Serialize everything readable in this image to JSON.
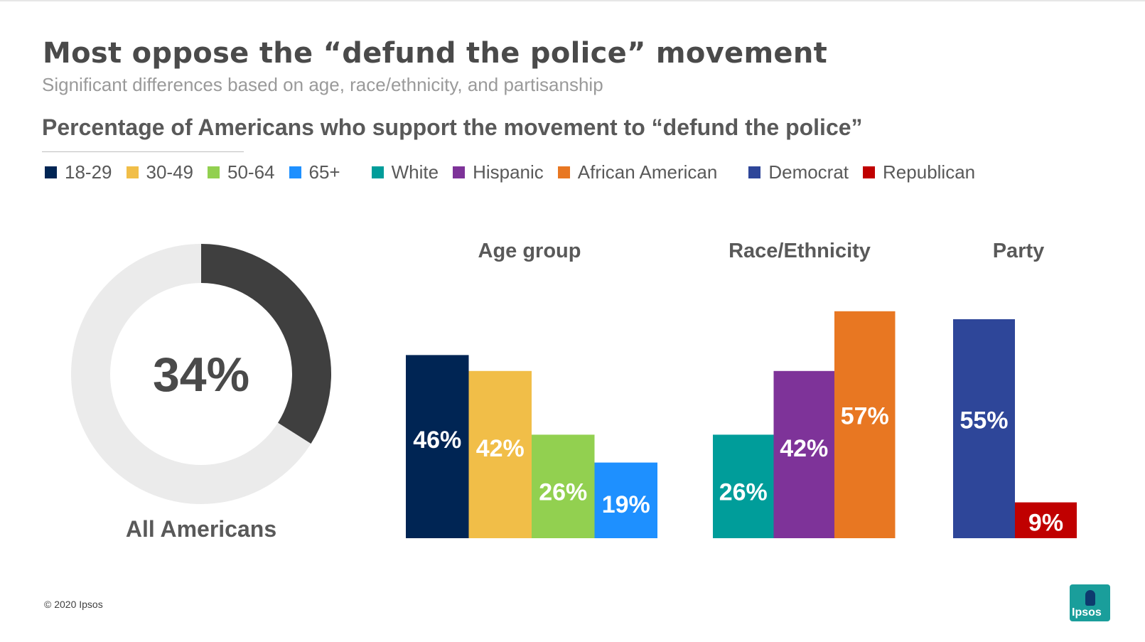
{
  "title": "Most oppose the “defund the police” movement",
  "subtitle": "Significant differences based on age, race/ethnicity, and partisanship",
  "chart_heading": "Percentage of Americans who support the movement to “defund the police”",
  "legend": [
    {
      "label": "18-29",
      "color": "#002554"
    },
    {
      "label": "30-49",
      "color": "#f1be48"
    },
    {
      "label": "50-64",
      "color": "#92d050"
    },
    {
      "label": "65+",
      "color": "#1e90ff"
    },
    {
      "label": "White",
      "color": "#009d9a"
    },
    {
      "label": "Hispanic",
      "color": "#7e3399"
    },
    {
      "label": "African American",
      "color": "#e87722"
    },
    {
      "label": "Democrat",
      "color": "#2e4699"
    },
    {
      "label": "Republican",
      "color": "#c00000"
    }
  ],
  "footer": "© 2020 Ipsos",
  "logo_text": "Ipsos",
  "chart_data": [
    {
      "type": "pie",
      "style": "donut",
      "label": "All Americans",
      "center_label": "34%",
      "value": 34,
      "colors": {
        "value": "#3f3f3f",
        "remainder": "#ebebeb"
      }
    },
    {
      "type": "bar",
      "group_title": "Age group",
      "categories": [
        "18-29",
        "30-49",
        "50-64",
        "65+"
      ],
      "values": [
        46,
        42,
        26,
        19
      ],
      "labels": [
        "46%",
        "42%",
        "26%",
        "19%"
      ],
      "colors": [
        "#002554",
        "#f1be48",
        "#92d050",
        "#1e90ff"
      ]
    },
    {
      "type": "bar",
      "group_title": "Race/Ethnicity",
      "categories": [
        "White",
        "Hispanic",
        "African American"
      ],
      "values": [
        26,
        42,
        57
      ],
      "labels": [
        "26%",
        "42%",
        "57%"
      ],
      "colors": [
        "#009d9a",
        "#7e3399",
        "#e87722"
      ]
    },
    {
      "type": "bar",
      "group_title": "Party",
      "categories": [
        "Democrat",
        "Republican"
      ],
      "values": [
        55,
        9
      ],
      "labels": [
        "55%",
        "9%"
      ],
      "colors": [
        "#2e4699",
        "#c00000"
      ]
    }
  ]
}
